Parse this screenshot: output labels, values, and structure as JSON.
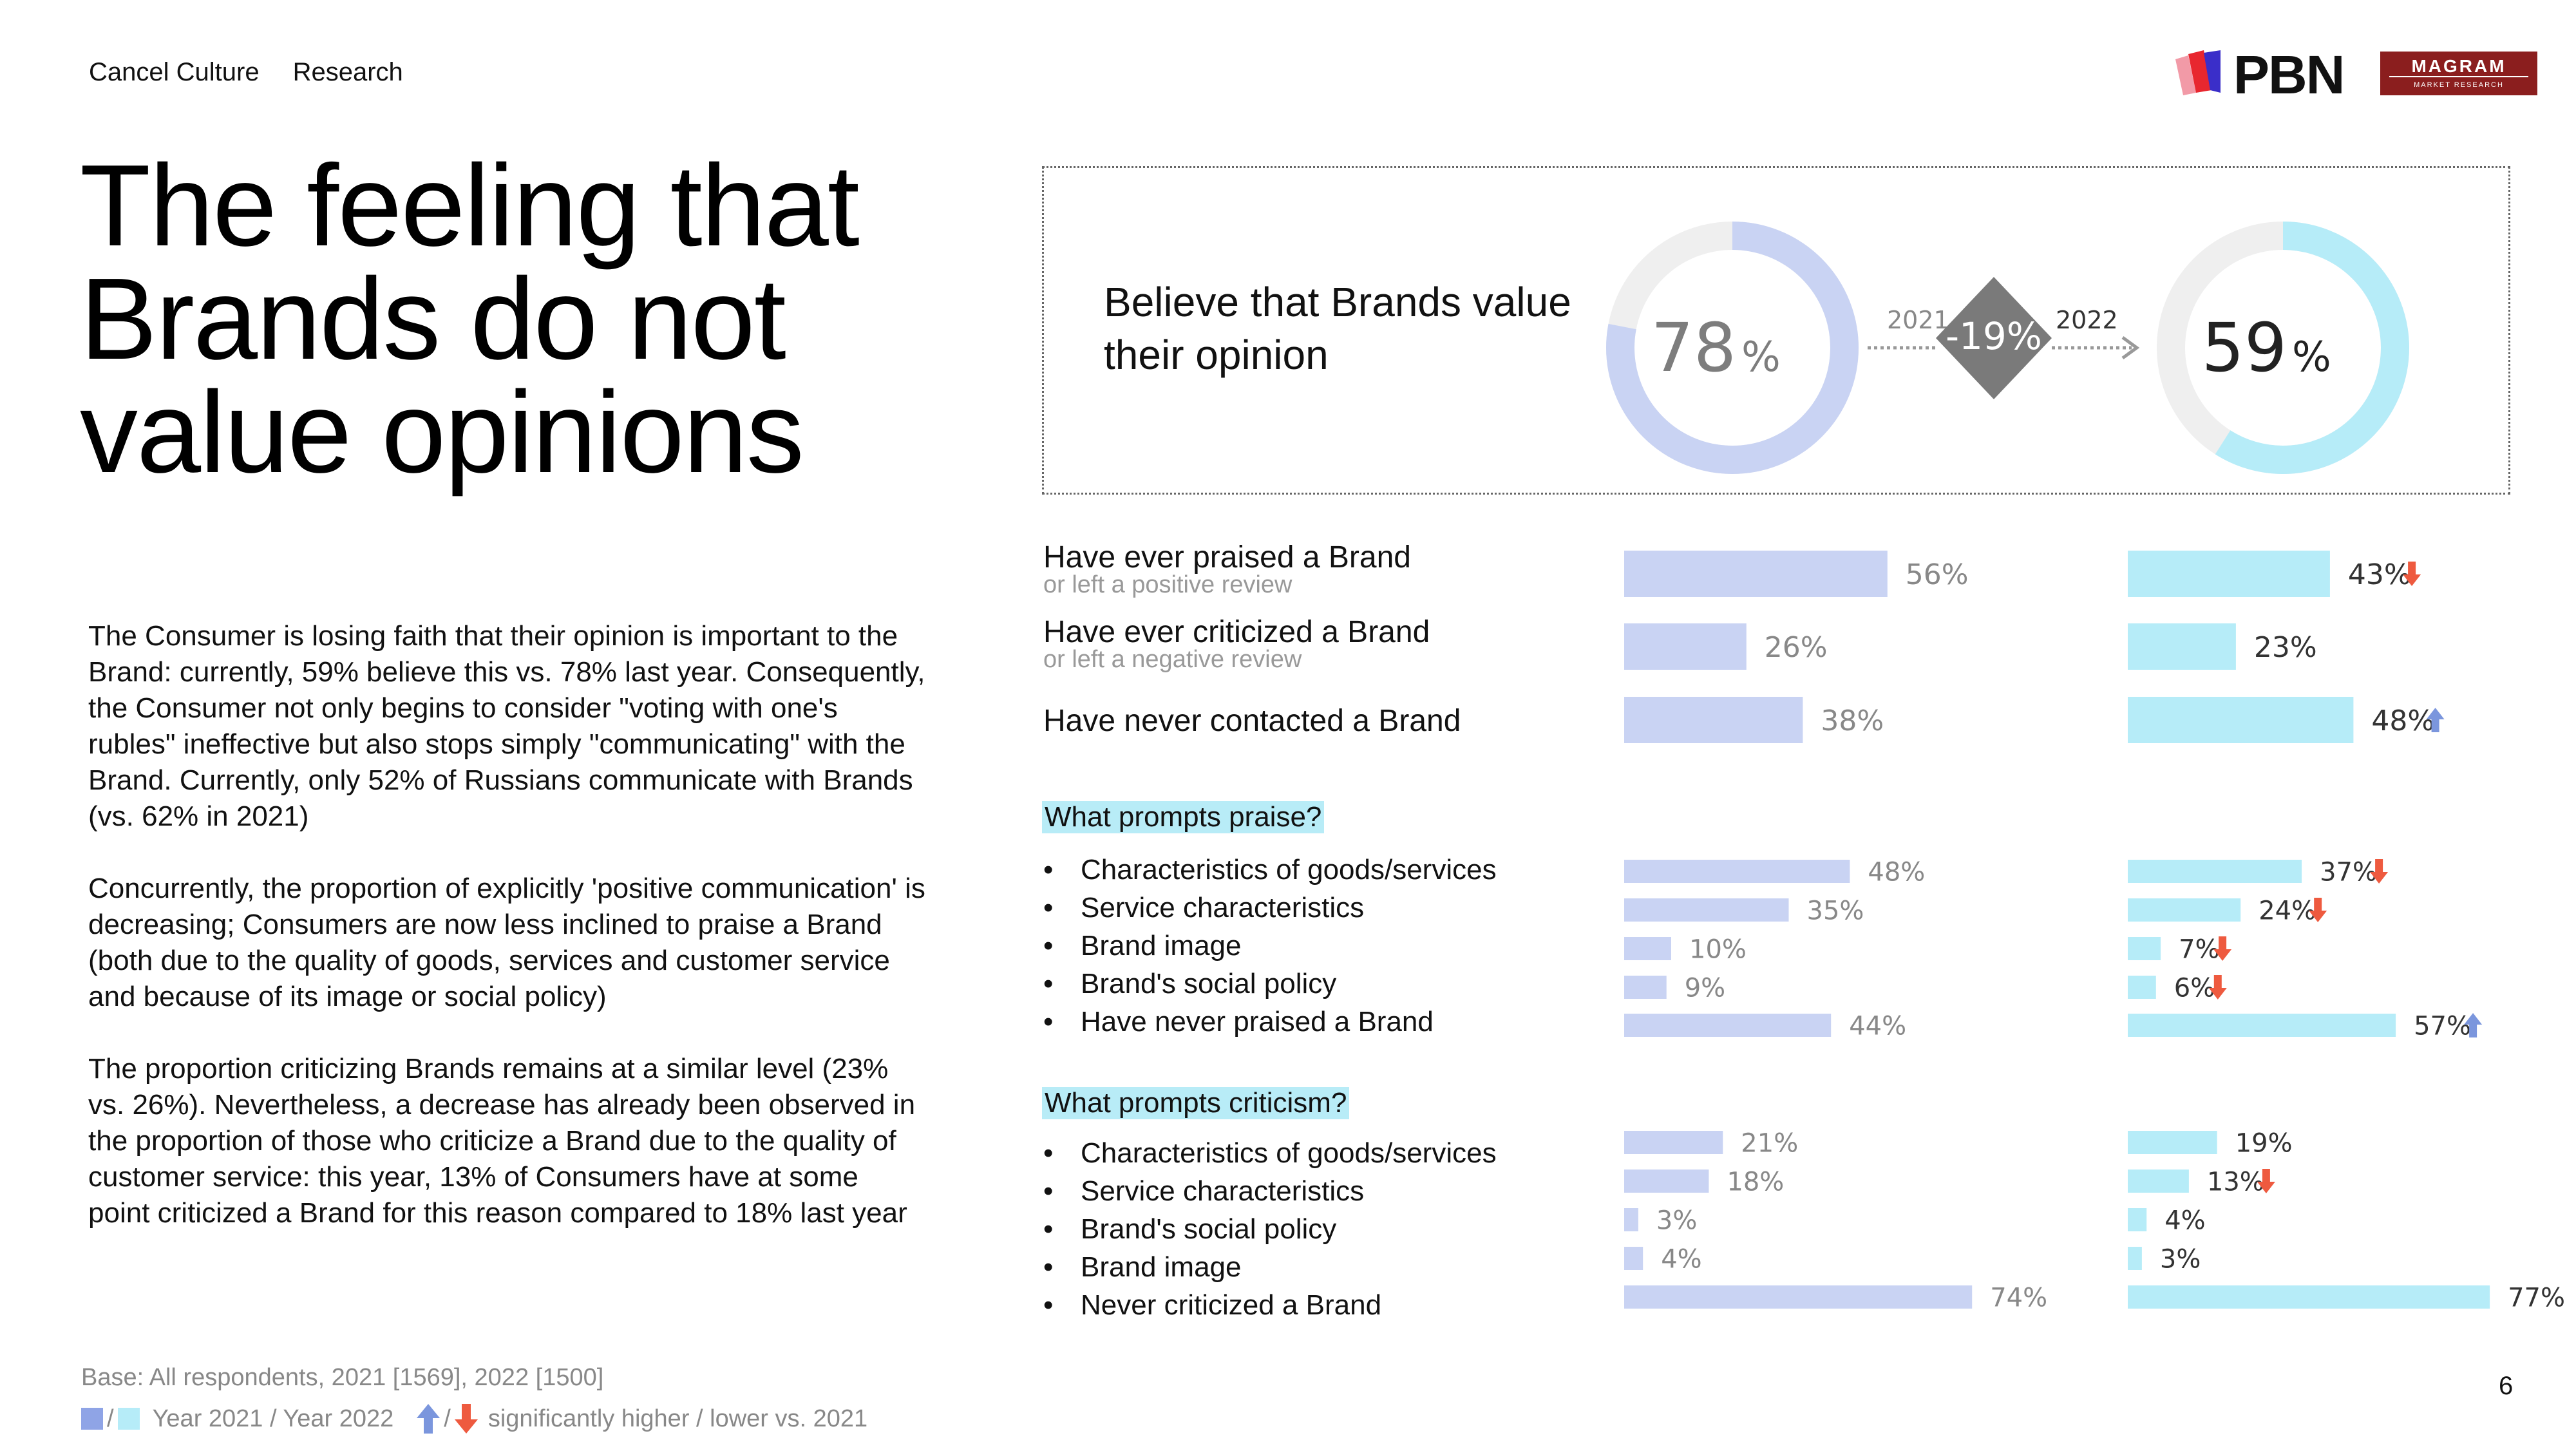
{
  "nav": {
    "item1": "Cancel Culture",
    "item2": "Research"
  },
  "title": "The feeling that Brands do not value opinions",
  "body": {
    "p1": "The Consumer is losing faith that their opinion is important to the Brand: currently, 59% believe this vs. 78% last year. Consequently, the Consumer not only begins to consider \"voting with one's rubles\" ineffective but also stops simply \"communicating\" with the Brand. Currently, only 52% of Russians communicate with Brands (vs. 62% in 2021)",
    "p2": "Concurrently, the proportion of explicitly 'positive communication' is decreasing; Consumers are now less inclined to praise a Brand (both due to the quality of goods, services and customer service and because of its image or social policy)",
    "p3": "The proportion criticizing Brands remains at a similar level (23% vs. 26%). Nevertheless, a decrease has already been observed in the proportion of those who criticize a Brand due to the quality of customer service: this year, 13% of Consumers have at some point criticized a Brand for this reason compared to 18% last year"
  },
  "footer": {
    "base": "Base: All respondents, 2021 [1569], 2022 [1500]",
    "legend_years": "Year 2021 / Year 2022",
    "legend_sig": "significantly higher / lower vs. 2021",
    "slash1": "/",
    "slash2": "/"
  },
  "page_number": "6",
  "logos": {
    "pbn": "PBN",
    "magram": "MAGRAM",
    "magram_sub": "MARKET RESEARCH"
  },
  "colors": {
    "year2021": "#c9d3f3",
    "year2022": "#b6ecf8",
    "donut_bg": "#efefef",
    "diamond": "#7a7a7a",
    "arrow_up": "#7b96dd",
    "arrow_down": "#ee5a3f",
    "highlight": "#b8ecf7"
  },
  "chart_data": [
    {
      "type": "pie",
      "title": "Believe that Brands value their opinion",
      "series": [
        {
          "name": "2021",
          "value": 78,
          "label": "78",
          "unit": "%"
        },
        {
          "name": "2022",
          "value": 59,
          "label": "59",
          "unit": "%"
        }
      ],
      "change": "-19%",
      "year_from": "2021",
      "year_to": "2022"
    },
    {
      "type": "bar",
      "orientation": "horizontal",
      "categories": [
        "Have ever praised a Brand",
        "Have ever criticized a Brand",
        "Have never contacted a Brand"
      ],
      "sublabels": [
        "or left a positive review",
        "or left a negative review",
        ""
      ],
      "series": [
        {
          "name": "2021",
          "values": [
            56,
            26,
            38
          ],
          "labels": [
            "56%",
            "26%",
            "38%"
          ],
          "sig": [
            "",
            "",
            ""
          ]
        },
        {
          "name": "2022",
          "values": [
            43,
            23,
            48
          ],
          "labels": [
            "43%",
            "23%",
            "48%"
          ],
          "sig": [
            "down",
            "",
            "up"
          ]
        }
      ]
    },
    {
      "type": "bar",
      "orientation": "horizontal",
      "title": "What prompts praise?",
      "categories": [
        "Characteristics of goods/services",
        "Service characteristics",
        "Brand image",
        "Brand's social policy",
        "Have never praised a Brand"
      ],
      "series": [
        {
          "name": "2021",
          "values": [
            48,
            35,
            10,
            9,
            44
          ],
          "labels": [
            "48%",
            "35%",
            "10%",
            "9%",
            "44%"
          ],
          "sig": [
            "",
            "",
            "",
            "",
            ""
          ]
        },
        {
          "name": "2022",
          "values": [
            37,
            24,
            7,
            6,
            57
          ],
          "labels": [
            "37%",
            "24%",
            "7%",
            "6%",
            "57%"
          ],
          "sig": [
            "down",
            "down",
            "down",
            "down",
            "up"
          ]
        }
      ]
    },
    {
      "type": "bar",
      "orientation": "horizontal",
      "title": "What prompts criticism?",
      "categories": [
        "Characteristics of goods/services",
        "Service characteristics",
        "Brand's social policy",
        "Brand image",
        "Never criticized a Brand"
      ],
      "series": [
        {
          "name": "2021",
          "values": [
            21,
            18,
            3,
            4,
            74
          ],
          "labels": [
            "21%",
            "18%",
            "3%",
            "4%",
            "74%"
          ],
          "sig": [
            "",
            "",
            "",
            "",
            ""
          ]
        },
        {
          "name": "2022",
          "values": [
            19,
            13,
            4,
            3,
            77
          ],
          "labels": [
            "19%",
            "13%",
            "4%",
            "3%",
            "77%"
          ],
          "sig": [
            "",
            "down",
            "",
            "",
            ""
          ]
        }
      ]
    }
  ]
}
